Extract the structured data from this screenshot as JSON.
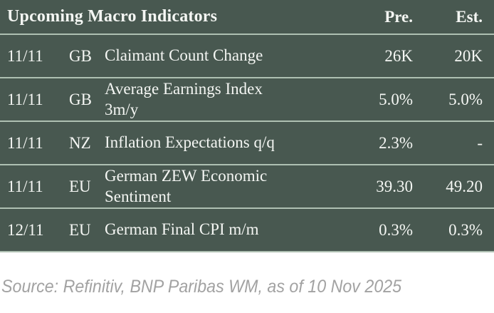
{
  "table": {
    "title": "Upcoming Macro Indicators",
    "columns": {
      "pre_label": "Pre.",
      "est_label": "Est."
    },
    "rows": [
      {
        "date": "11/11",
        "country": "GB",
        "indicator": "Claimant Count Change",
        "pre": "26K",
        "est": "20K"
      },
      {
        "date": "11/11",
        "country": "GB",
        "indicator": "Average Earnings Index\n3m/y",
        "pre": "5.0%",
        "est": "5.0%"
      },
      {
        "date": "11/11",
        "country": "NZ",
        "indicator": "Inflation Expectations q/q",
        "pre": "2.3%",
        "est": "-"
      },
      {
        "date": "11/11",
        "country": "EU",
        "indicator": "German ZEW Economic\nSentiment",
        "pre": "39.30",
        "est": "49.20"
      },
      {
        "date": "12/11",
        "country": "EU",
        "indicator": "German Final CPI m/m",
        "pre": "0.3%",
        "est": "0.3%"
      }
    ]
  },
  "footer": {
    "source_note": "Source: Refinitiv, BNP Paribas WM, as of 10 Nov 2025"
  },
  "colors": {
    "table_bg": "#485850",
    "separator": "#aec0b2",
    "table_text": "#f4f6f3",
    "source_text": "#a2a2a2",
    "page_bg": "#ffffff"
  }
}
